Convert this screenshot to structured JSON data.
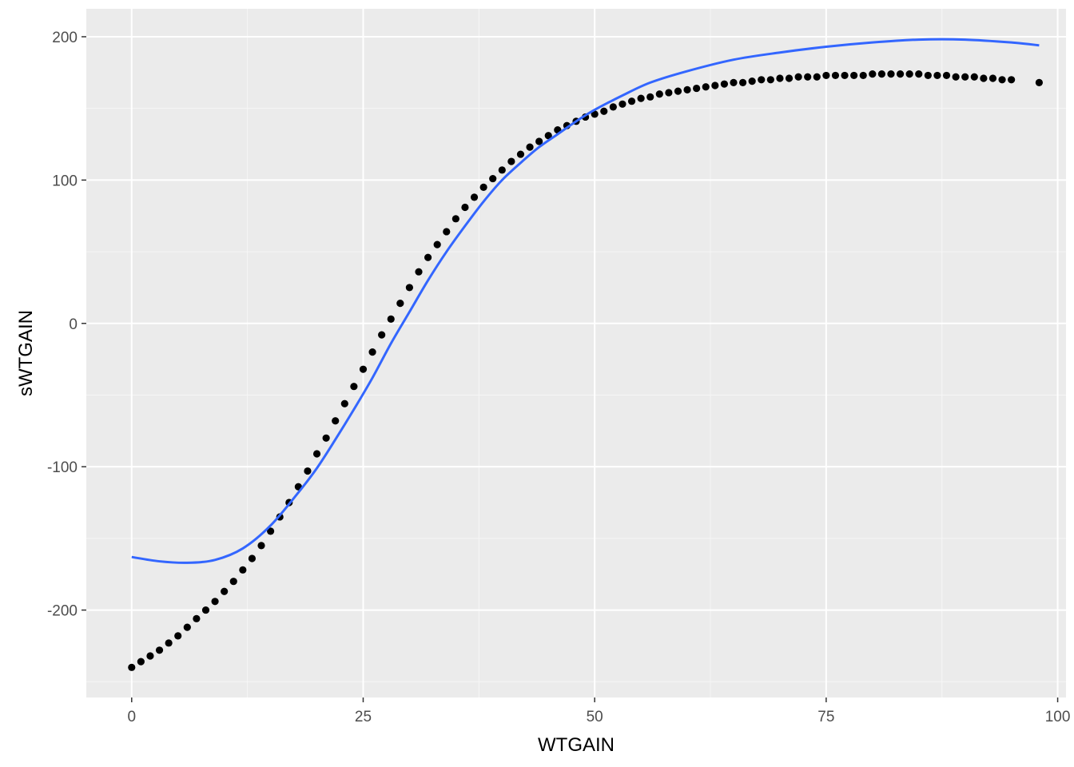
{
  "chart_data": {
    "type": "scatter",
    "title": "",
    "xlabel": "WTGAIN",
    "ylabel": "sWTGAIN",
    "xlim": [
      -4.9,
      100.9
    ],
    "ylim": [
      -261.0,
      219.5
    ],
    "x_ticks": [
      0,
      25,
      50,
      75,
      100
    ],
    "x_tick_labels": [
      "0",
      "25",
      "50",
      "75",
      "100"
    ],
    "y_ticks": [
      -200,
      -100,
      0,
      100,
      200
    ],
    "y_tick_labels": [
      "-200",
      "-100",
      "0",
      "100",
      "200"
    ],
    "grid": true,
    "legend": "none",
    "colors": {
      "panel_background": "#ebebeb",
      "grid_major": "#ffffff",
      "grid_minor": "#f6f6f6",
      "points": "#000000",
      "smooth_line": "#3366ff"
    },
    "series": [
      {
        "kind": "points",
        "x": [
          0,
          1,
          2,
          3,
          4,
          5,
          6,
          7,
          8,
          9,
          10,
          11,
          12,
          13,
          14,
          15,
          16,
          17,
          18,
          19,
          20,
          21,
          22,
          23,
          24,
          25,
          26,
          27,
          28,
          29,
          30,
          31,
          32,
          33,
          34,
          35,
          36,
          37,
          38,
          39,
          40,
          41,
          42,
          43,
          44,
          45,
          46,
          47,
          48,
          49,
          50,
          51,
          52,
          53,
          54,
          55,
          56,
          57,
          58,
          59,
          60,
          61,
          62,
          63,
          64,
          65,
          66,
          67,
          68,
          69,
          70,
          71,
          72,
          73,
          74,
          75,
          76,
          77,
          78,
          79,
          80,
          81,
          82,
          83,
          84,
          85,
          86,
          87,
          88,
          89,
          90,
          91,
          92,
          93,
          94,
          95,
          98
        ],
        "y": [
          -240,
          -236,
          -232,
          -228,
          -223,
          -218,
          -212,
          -206,
          -200,
          -194,
          -187,
          -180,
          -172,
          -164,
          -155,
          -145,
          -135,
          -125,
          -114,
          -103,
          -91,
          -80,
          -68,
          -56,
          -44,
          -32,
          -20,
          -8,
          3,
          14,
          25,
          36,
          46,
          55,
          64,
          73,
          81,
          88,
          95,
          101,
          107,
          113,
          118,
          123,
          127,
          131,
          135,
          138,
          141,
          144,
          146,
          148,
          151,
          153,
          155,
          157,
          158,
          160,
          161,
          162,
          163,
          164,
          165,
          166,
          167,
          168,
          168,
          169,
          170,
          170,
          171,
          171,
          172,
          172,
          172,
          173,
          173,
          173,
          173,
          173,
          174,
          174,
          174,
          174,
          174,
          174,
          173,
          173,
          173,
          172,
          172,
          172,
          171,
          171,
          170,
          170,
          168
        ]
      },
      {
        "kind": "smooth",
        "x": [
          0,
          3,
          6,
          9,
          12,
          15,
          18,
          20,
          22,
          24,
          26,
          28,
          30,
          32,
          34,
          36,
          38,
          40,
          42,
          44,
          46,
          48,
          50,
          53,
          56,
          60,
          65,
          70,
          75,
          80,
          85,
          90,
          95,
          98
        ],
        "y": [
          -163,
          -166,
          -167,
          -165,
          -157,
          -141,
          -118,
          -101,
          -81,
          -60,
          -38,
          -14,
          8,
          30,
          50,
          68,
          85,
          100,
          112,
          123,
          132,
          141,
          149,
          159,
          168,
          176,
          184,
          189,
          193,
          196,
          198,
          198,
          196,
          194
        ]
      }
    ]
  }
}
